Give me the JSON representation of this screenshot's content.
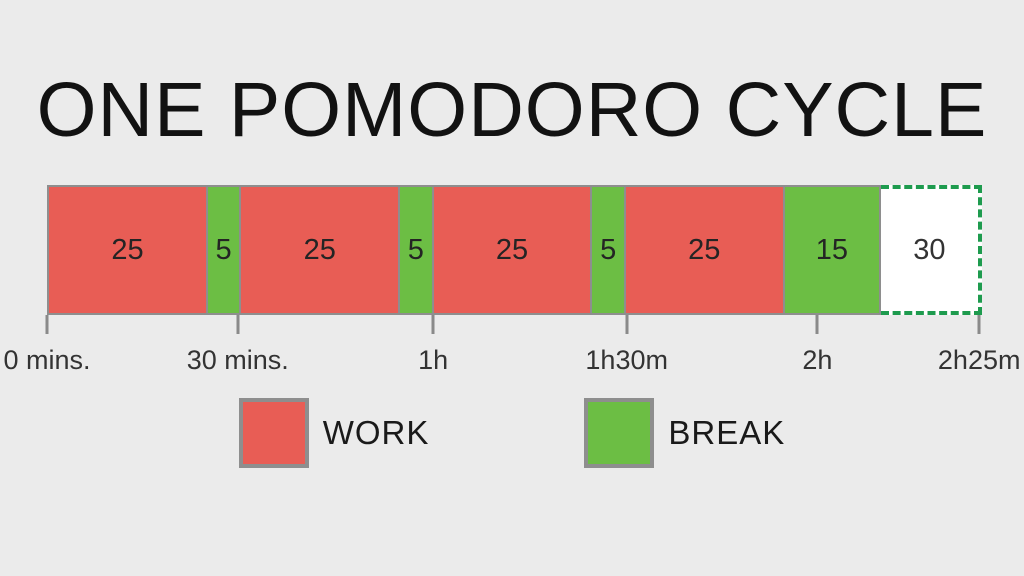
{
  "title": "ONE POMODORO CYCLE",
  "colors": {
    "work": "#e85d55",
    "break": "#6cbe44",
    "pending_dash_border": "#1e9b4e",
    "segment_border": "#8e8e8e",
    "background": "#ebebeb",
    "tick": "#8a8a8a",
    "text": "#333333"
  },
  "chart_data": {
    "type": "bar",
    "subtype": "timeline",
    "title": "ONE POMODORO CYCLE",
    "xlabel": "",
    "ylabel": "",
    "axis_range_minutes": [
      0,
      145
    ],
    "grid": false,
    "legend_position": "bottom-center",
    "segments": [
      {
        "label": "25",
        "minutes": 25,
        "kind": "work"
      },
      {
        "label": "5",
        "minutes": 5,
        "kind": "break"
      },
      {
        "label": "25",
        "minutes": 25,
        "kind": "work"
      },
      {
        "label": "5",
        "minutes": 5,
        "kind": "break"
      },
      {
        "label": "25",
        "minutes": 25,
        "kind": "work"
      },
      {
        "label": "5",
        "minutes": 5,
        "kind": "break"
      },
      {
        "label": "25",
        "minutes": 25,
        "kind": "work"
      },
      {
        "label": "15",
        "minutes": 15,
        "kind": "long-break"
      },
      {
        "label": "30",
        "minutes": 30,
        "kind": "pending-outline"
      }
    ],
    "axis_ticks": [
      {
        "label": "0 mins.",
        "minutes": 0
      },
      {
        "label": "30 mins.",
        "minutes": 30
      },
      {
        "label": "1h",
        "minutes": 60
      },
      {
        "label": "1h30m",
        "minutes": 90
      },
      {
        "label": "2h",
        "minutes": 120
      },
      {
        "label": "2h25m",
        "minutes": 145
      }
    ],
    "legend": [
      {
        "label": "WORK",
        "color": "#e85d55"
      },
      {
        "label": "BREAK",
        "color": "#6cbe44"
      }
    ]
  }
}
